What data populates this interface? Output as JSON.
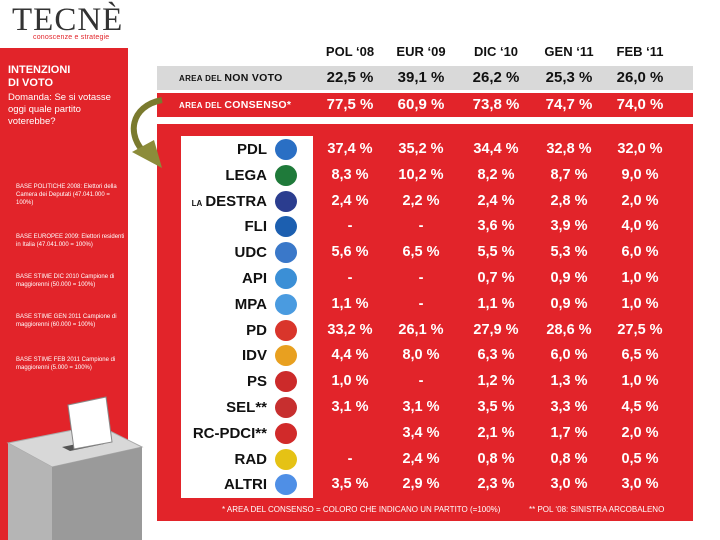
{
  "brand": {
    "logo": "TECNÈ",
    "tagline": "conoscenze e strategie",
    "accent_color": "#e2242a"
  },
  "sidebar": {
    "title_line1": "INTENZIONI",
    "title_line2": "DI VOTO",
    "question": "Domanda: Se si votasse oggi quale partito voterebbe?",
    "bases": [
      "BASE POLITICHE 2008: Elettori della Camera dei Deputati (47.041.000 = 100%)",
      "BASE EUROPEE 2009: Elettori residenti in Italia (47.041.000 = 100%)",
      "BASE STIME DIC 2010 Campione di maggiorenni (50.000 = 100%)",
      "BASE STIME GEN 2011 Campione di maggiorenni (60.000 = 100%)",
      "BASE STIME FEB 2011 Campione di maggiorenni (5.000 = 100%)"
    ]
  },
  "columns": [
    "POL ‘08",
    "EUR ‘09",
    "DIC ‘10",
    "GEN ‘11",
    "FEB ‘11"
  ],
  "summary": [
    {
      "prefix": "AREA DEL",
      "label": "NON VOTO",
      "values": [
        "22,5 %",
        "39,1 %",
        "26,2 %",
        "25,3 %",
        "26,0 %"
      ]
    },
    {
      "prefix": "AREA DEL",
      "label": "CONSENSO*",
      "values": [
        "77,5 %",
        "60,9 %",
        "73,8 %",
        "74,7 %",
        "74,0 %"
      ]
    }
  ],
  "parties": [
    {
      "prefix": "",
      "name": "PDL",
      "logo_color": "#2a6fc4",
      "values": [
        "37,4 %",
        "35,2 %",
        "34,4 %",
        "32,8 %",
        "32,0 %"
      ]
    },
    {
      "prefix": "",
      "name": "LEGA",
      "logo_color": "#1f7a3a",
      "values": [
        "8,3 %",
        "10,2 %",
        "8,2 %",
        "8,7 %",
        "9,0 %"
      ]
    },
    {
      "prefix": "LA",
      "name": "DESTRA",
      "logo_color": "#2b3d8f",
      "values": [
        "2,4 %",
        "2,2 %",
        "2,4 %",
        "2,8 %",
        "2,0 %"
      ]
    },
    {
      "prefix": "",
      "name": "FLI",
      "logo_color": "#1c5fb0",
      "values": [
        "-",
        "-",
        "3,6 %",
        "3,9 %",
        "4,0 %"
      ]
    },
    {
      "prefix": "",
      "name": "UDC",
      "logo_color": "#3a78c9",
      "values": [
        "5,6 %",
        "6,5 %",
        "5,5 %",
        "5,3 %",
        "6,0 %"
      ]
    },
    {
      "prefix": "",
      "name": "API",
      "logo_color": "#3b8fd6",
      "values": [
        "-",
        "-",
        "0,7 %",
        "0,9 %",
        "1,0 %"
      ]
    },
    {
      "prefix": "",
      "name": "MPA",
      "logo_color": "#4a9be0",
      "values": [
        "1,1 %",
        "-",
        "1,1 %",
        "0,9 %",
        "1,0 %"
      ]
    },
    {
      "prefix": "",
      "name": "PD",
      "logo_color": "#d9352b",
      "values": [
        "33,2 %",
        "26,1 %",
        "27,9 %",
        "28,6 %",
        "27,5 %"
      ]
    },
    {
      "prefix": "",
      "name": "IDV",
      "logo_color": "#e8a020",
      "values": [
        "4,4 %",
        "8,0 %",
        "6,3 %",
        "6,0 %",
        "6,5 %"
      ]
    },
    {
      "prefix": "",
      "name": "PS",
      "logo_color": "#cc2a2a",
      "values": [
        "1,0 %",
        "-",
        "1,2 %",
        "1,3 %",
        "1,0 %"
      ]
    },
    {
      "prefix": "",
      "name": "SEL**",
      "logo_color": "#c72f2f",
      "values": [
        "3,1 %",
        "3,1 %",
        "3,5 %",
        "3,3 %",
        "4,5 %"
      ]
    },
    {
      "prefix": "",
      "name": "RC-PDCI**",
      "logo_color": "#d12a2a",
      "values": [
        "",
        "3,4 %",
        "2,1 %",
        "1,7 %",
        "2,0 %"
      ]
    },
    {
      "prefix": "",
      "name": "RAD",
      "logo_color": "#e5c215",
      "values": [
        "-",
        "2,4 %",
        "0,8 %",
        "0,8 %",
        "0,5 %"
      ]
    },
    {
      "prefix": "",
      "name": "ALTRI",
      "logo_color": "#4f8fe6",
      "values": [
        "3,5 %",
        "2,9 %",
        "2,3 %",
        "3,0 %",
        "3,0 %"
      ]
    }
  ],
  "footnotes": {
    "left": "* AREA DEL CONSENSO = COLORO CHE INDICANO UN PARTITO  (=100%)",
    "right": "** POL ‘08: SINISTRA ARCOBALENO"
  }
}
